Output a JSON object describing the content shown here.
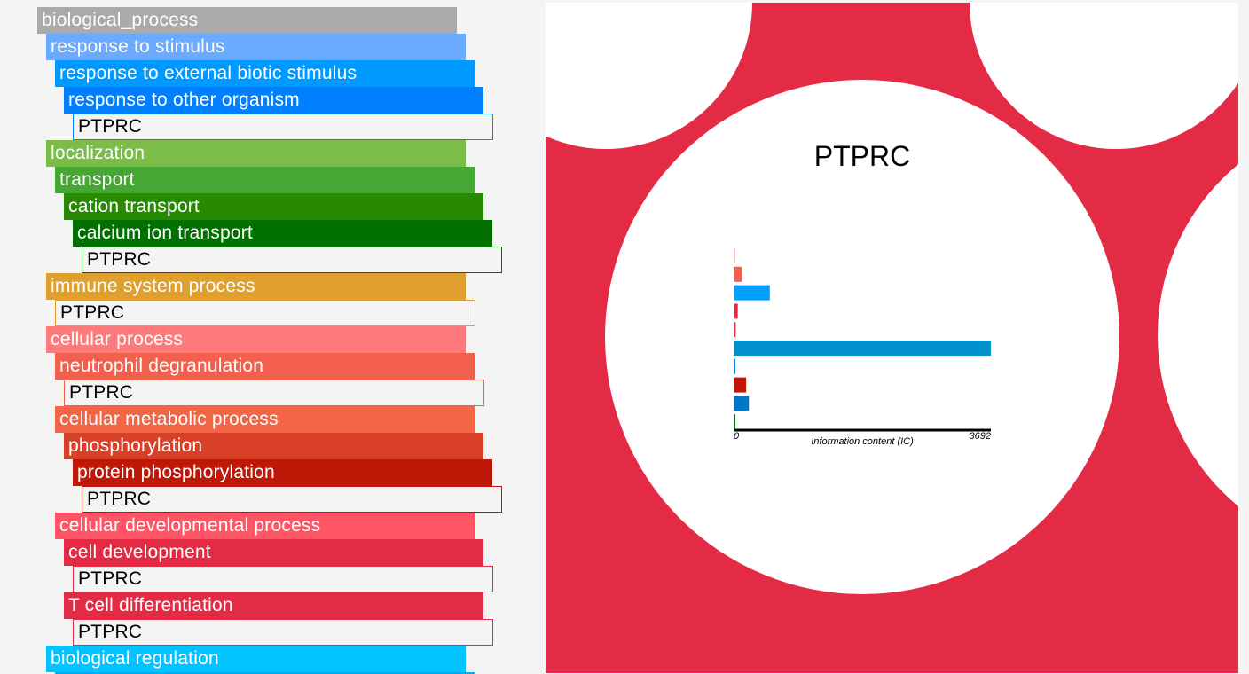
{
  "tree": {
    "nodes": [
      {
        "label": "biological_process",
        "depth": 0,
        "color": "#aaaaaa",
        "leaf": false
      },
      {
        "label": "response to stimulus",
        "depth": 1,
        "color": "#6aabff",
        "leaf": false
      },
      {
        "label": "response to external biotic stimulus",
        "depth": 2,
        "color": "#0099ff",
        "leaf": false
      },
      {
        "label": "response to other organism",
        "depth": 3,
        "color": "#0080ff",
        "leaf": false
      },
      {
        "label": "PTPRC",
        "depth": 4,
        "color": "#0080ff",
        "leaf": true
      },
      {
        "label": "localization",
        "depth": 1,
        "color": "#7cbd4a",
        "leaf": false
      },
      {
        "label": "transport",
        "depth": 2,
        "color": "#44a832",
        "leaf": false
      },
      {
        "label": "cation transport",
        "depth": 3,
        "color": "#288a00",
        "leaf": false
      },
      {
        "label": "calcium ion transport",
        "depth": 4,
        "color": "#007000",
        "leaf": false
      },
      {
        "label": "PTPRC",
        "depth": 5,
        "color": "#007000",
        "leaf": true
      },
      {
        "label": "immune system process",
        "depth": 1,
        "color": "#e0a030",
        "leaf": false
      },
      {
        "label": "PTPRC",
        "depth": 2,
        "color": "#e0a030",
        "leaf": true
      },
      {
        "label": "cellular process",
        "depth": 1,
        "color": "#ff7a7a",
        "leaf": false
      },
      {
        "label": "neutrophil degranulation",
        "depth": 2,
        "color": "#f35f4d",
        "leaf": false
      },
      {
        "label": "PTPRC",
        "depth": 3,
        "color": "#f35f4d",
        "leaf": true
      },
      {
        "label": "cellular metabolic process",
        "depth": 2,
        "color": "#f26545",
        "leaf": false
      },
      {
        "label": "phosphorylation",
        "depth": 3,
        "color": "#d84028",
        "leaf": false
      },
      {
        "label": "protein phosphorylation",
        "depth": 4,
        "color": "#c01808",
        "leaf": false
      },
      {
        "label": "PTPRC",
        "depth": 5,
        "color": "#c01808",
        "leaf": true
      },
      {
        "label": "cellular developmental process",
        "depth": 2,
        "color": "#ff5565",
        "leaf": false
      },
      {
        "label": "cell development",
        "depth": 3,
        "color": "#e32b45",
        "leaf": false
      },
      {
        "label": "PTPRC",
        "depth": 4,
        "color": "#e32b45",
        "leaf": true
      },
      {
        "label": "T cell differentiation",
        "depth": 3,
        "color": "#e32b45",
        "leaf": false
      },
      {
        "label": "PTPRC",
        "depth": 4,
        "color": "#e32b45",
        "leaf": true
      },
      {
        "label": "biological regulation",
        "depth": 1,
        "color": "#00c3ff",
        "leaf": false
      },
      {
        "label": "",
        "depth": 2,
        "color": "#00aaee",
        "leaf": false
      }
    ]
  },
  "panel": {
    "background_color": "#e32b45",
    "gene_label": "PTPRC"
  },
  "chart_data": {
    "type": "bar",
    "orientation": "horizontal",
    "xlabel": "Information content (IC)",
    "xlim": [
      0,
      3692
    ],
    "tick_labels": [
      "0",
      "3692"
    ],
    "values": [
      8,
      120,
      520,
      60,
      30,
      3692,
      25,
      180,
      220,
      25
    ],
    "colors": [
      "#f5c0c0",
      "#f35f4d",
      "#00a0ff",
      "#e32b45",
      "#e32b45",
      "#0090cc",
      "#0080ff",
      "#c01808",
      "#0078c8",
      "#007000"
    ]
  }
}
